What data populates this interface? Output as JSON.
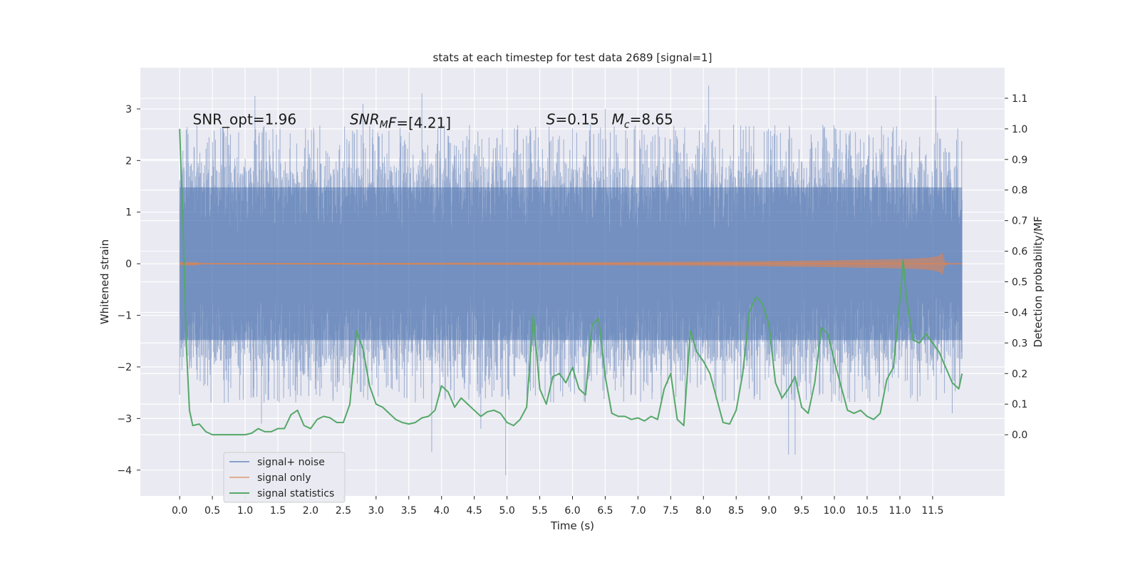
{
  "chart_data": {
    "type": "line",
    "title": "stats at each timestep for test data 2689 [signal=1]",
    "xlabel": "Time (s)",
    "ylabel_left": "Whitened strain",
    "ylabel_right": "Detection probability/MF",
    "xlim": [
      -0.6,
      12.6
    ],
    "ylim_left": [
      -4.5,
      3.8
    ],
    "ylim_right": [
      -0.2,
      1.2
    ],
    "x_ticks": [
      0.0,
      0.5,
      1.0,
      1.5,
      2.0,
      2.5,
      3.0,
      3.5,
      4.0,
      4.5,
      5.0,
      5.5,
      6.0,
      6.5,
      7.0,
      7.5,
      8.0,
      8.5,
      9.0,
      9.5,
      10.0,
      10.5,
      11.0,
      11.5
    ],
    "x_tick_labels": [
      "0.0",
      "0.5",
      "1.0",
      "1.5",
      "2.0",
      "2.5",
      "3.0",
      "3.5",
      "4.0",
      "4.5",
      "5.0",
      "5.5",
      "6.0",
      "6.5",
      "7.0",
      "7.5",
      "8.0",
      "8.5",
      "9.0",
      "9.5",
      "10.0",
      "10.5",
      "11.0",
      "11.5"
    ],
    "y_left_ticks": [
      -4,
      -3,
      -2,
      -1,
      0,
      1,
      2,
      3
    ],
    "y_left_tick_labels": [
      "−4",
      "−3",
      "−2",
      "−1",
      "0",
      "1",
      "2",
      "3"
    ],
    "y_right_ticks": [
      0.0,
      0.1,
      0.2,
      0.3,
      0.4,
      0.5,
      0.6,
      0.7,
      0.8,
      0.9,
      1.0,
      1.1
    ],
    "y_right_tick_labels": [
      "0.0",
      "0.1",
      "0.2",
      "0.3",
      "0.4",
      "0.5",
      "0.6",
      "0.7",
      "0.8",
      "0.9",
      "1.0",
      "1.1"
    ],
    "grid": true,
    "legend_placement": "lower-left",
    "annotations": [
      {
        "text": "SNR_opt=1.96",
        "x": 0.2,
        "y": 2.7
      },
      {
        "text": "SNR",
        "sub": "M",
        "after": "F=[4.21]",
        "x": 2.6,
        "y": 2.7
      },
      {
        "text": "S",
        "after": "=0.15",
        "x": 5.6,
        "y": 2.7
      },
      {
        "text": "M",
        "sub": "c",
        "after": "=8.65",
        "x": 6.6,
        "y": 2.7
      }
    ],
    "series": [
      {
        "name": "signal+ noise",
        "color": "#4c72b0",
        "axis": "left",
        "kind": "noise",
        "x_range": [
          0.0,
          11.95
        ],
        "typical_range": [
          -1.5,
          1.5
        ],
        "extremes": [
          {
            "x": 0.1,
            "y": 2.6
          },
          {
            "x": 1.15,
            "y": 3.25
          },
          {
            "x": 1.25,
            "y": -3.1
          },
          {
            "x": 3.7,
            "y": 3.3
          },
          {
            "x": 3.85,
            "y": -3.65
          },
          {
            "x": 4.6,
            "y": -3.2
          },
          {
            "x": 4.98,
            "y": -4.1
          },
          {
            "x": 7.72,
            "y": -2.9
          },
          {
            "x": 8.08,
            "y": 3.45
          },
          {
            "x": 9.3,
            "y": -3.7
          },
          {
            "x": 9.4,
            "y": -3.7
          },
          {
            "x": 11.55,
            "y": 3.25
          },
          {
            "x": 11.8,
            "y": -2.9
          },
          {
            "x": 2.8,
            "y": 3.1
          },
          {
            "x": 6.5,
            "y": 3.0
          }
        ]
      },
      {
        "name": "signal only",
        "color": "#dd8452",
        "axis": "left",
        "kind": "chirp",
        "x_range": [
          0.0,
          11.95
        ],
        "peak_time": 11.65,
        "peak_amplitude": 0.22
      },
      {
        "name": "signal statistics",
        "color": "#55a868",
        "axis": "right",
        "kind": "line",
        "x": [
          0.0,
          0.05,
          0.1,
          0.15,
          0.2,
          0.3,
          0.4,
          0.5,
          0.6,
          0.8,
          1.0,
          1.1,
          1.2,
          1.3,
          1.4,
          1.5,
          1.6,
          1.7,
          1.8,
          1.9,
          2.0,
          2.1,
          2.2,
          2.3,
          2.4,
          2.5,
          2.6,
          2.7,
          2.8,
          2.9,
          3.0,
          3.1,
          3.2,
          3.3,
          3.4,
          3.5,
          3.6,
          3.7,
          3.8,
          3.9,
          4.0,
          4.1,
          4.2,
          4.3,
          4.4,
          4.5,
          4.6,
          4.7,
          4.8,
          4.9,
          5.0,
          5.1,
          5.2,
          5.3,
          5.4,
          5.5,
          5.6,
          5.7,
          5.8,
          5.9,
          6.0,
          6.1,
          6.2,
          6.3,
          6.4,
          6.5,
          6.6,
          6.7,
          6.8,
          6.9,
          7.0,
          7.1,
          7.2,
          7.3,
          7.4,
          7.5,
          7.6,
          7.7,
          7.8,
          7.9,
          8.0,
          8.1,
          8.2,
          8.3,
          8.4,
          8.5,
          8.6,
          8.7,
          8.8,
          8.9,
          9.0,
          9.1,
          9.2,
          9.3,
          9.4,
          9.5,
          9.6,
          9.7,
          9.8,
          9.9,
          10.0,
          10.1,
          10.2,
          10.3,
          10.4,
          10.5,
          10.6,
          10.7,
          10.8,
          10.9,
          11.0,
          11.05,
          11.1,
          11.2,
          11.3,
          11.4,
          11.5,
          11.6,
          11.7,
          11.8,
          11.9,
          11.95
        ],
        "values": [
          1.0,
          0.7,
          0.3,
          0.08,
          0.03,
          0.035,
          0.01,
          0.0,
          0.0,
          0.0,
          0.0,
          0.005,
          0.02,
          0.01,
          0.01,
          0.02,
          0.02,
          0.065,
          0.08,
          0.03,
          0.02,
          0.05,
          0.06,
          0.055,
          0.04,
          0.04,
          0.1,
          0.34,
          0.28,
          0.16,
          0.1,
          0.09,
          0.07,
          0.05,
          0.04,
          0.035,
          0.04,
          0.055,
          0.06,
          0.08,
          0.16,
          0.14,
          0.09,
          0.12,
          0.1,
          0.08,
          0.06,
          0.075,
          0.08,
          0.07,
          0.04,
          0.03,
          0.05,
          0.09,
          0.39,
          0.15,
          0.1,
          0.19,
          0.2,
          0.17,
          0.22,
          0.15,
          0.13,
          0.36,
          0.38,
          0.19,
          0.07,
          0.06,
          0.06,
          0.05,
          0.055,
          0.045,
          0.06,
          0.05,
          0.15,
          0.2,
          0.05,
          0.03,
          0.34,
          0.27,
          0.24,
          0.2,
          0.12,
          0.04,
          0.035,
          0.08,
          0.2,
          0.4,
          0.45,
          0.43,
          0.36,
          0.17,
          0.12,
          0.15,
          0.19,
          0.09,
          0.07,
          0.17,
          0.35,
          0.33,
          0.24,
          0.16,
          0.08,
          0.07,
          0.08,
          0.06,
          0.05,
          0.07,
          0.18,
          0.22,
          0.44,
          0.57,
          0.45,
          0.31,
          0.3,
          0.33,
          0.3,
          0.27,
          0.22,
          0.17,
          0.15,
          0.2
        ]
      }
    ]
  }
}
